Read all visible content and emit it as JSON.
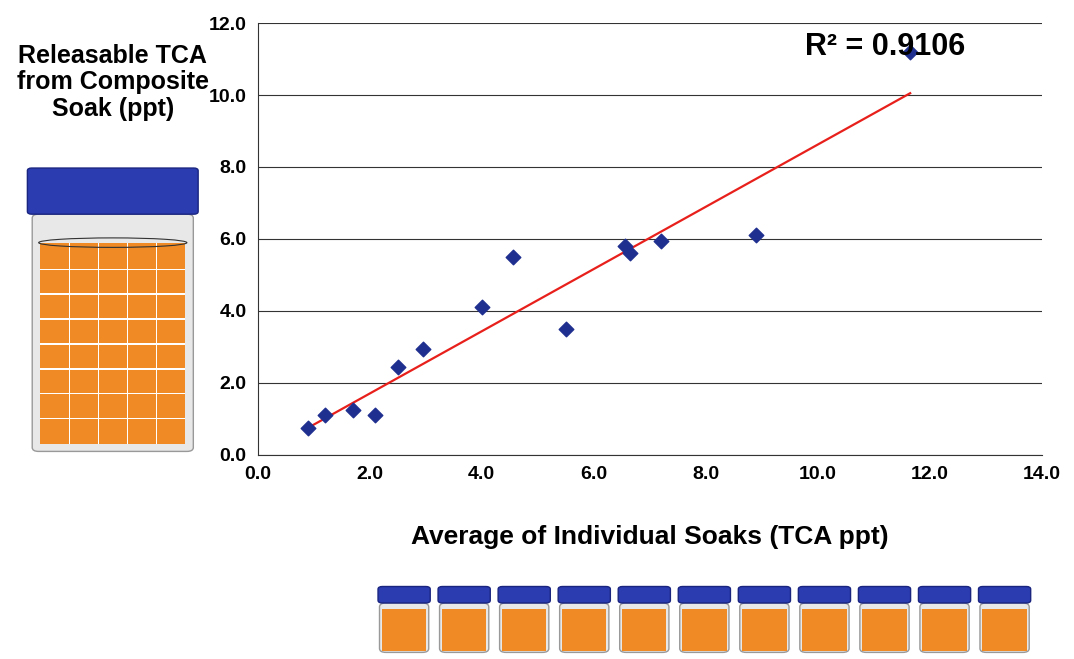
{
  "chart_data": {
    "type": "scatter",
    "y_label": "Releasable TCA\nfrom Composite\nSoak (ppt)",
    "x_label": "Average of Individual Soaks (TCA ppt)",
    "annotations": [
      "R² = 0.9106"
    ],
    "series": [
      {
        "type": "scatter",
        "color": "#1f2f8f",
        "marker": "diamond",
        "x": [
          0.9,
          1.2,
          1.7,
          2.1,
          2.5,
          2.95,
          4.0,
          4.55,
          5.5,
          6.55,
          6.65,
          7.2,
          8.9,
          11.65
        ],
        "values": [
          0.75,
          1.1,
          1.25,
          1.1,
          2.45,
          2.95,
          4.1,
          5.5,
          3.5,
          5.8,
          5.6,
          5.95,
          6.1,
          11.2
        ]
      },
      {
        "type": "line",
        "color": "#e8201c",
        "line_style": "solid",
        "x": [
          0.9,
          11.65
        ],
        "values": [
          0.75,
          10.05
        ]
      }
    ],
    "xlim": [
      0,
      14
    ],
    "xticks": [
      {
        "value": 0,
        "label": "0.0"
      },
      {
        "value": 2,
        "label": "2.0"
      },
      {
        "value": 4,
        "label": "4.0"
      },
      {
        "value": 6,
        "label": "6.0"
      },
      {
        "value": 8,
        "label": "8.0"
      },
      {
        "value": 10,
        "label": "10.0"
      },
      {
        "value": 12,
        "label": "12.0"
      },
      {
        "value": 14,
        "label": "14.0"
      }
    ],
    "ylim": [
      0,
      12
    ],
    "yticks": [
      {
        "value": 0,
        "label": "0.0"
      },
      {
        "value": 2,
        "label": "2.0"
      },
      {
        "value": 4,
        "label": "4.0"
      },
      {
        "value": 6,
        "label": "6.0"
      },
      {
        "value": 8,
        "label": "8.0"
      },
      {
        "value": 10,
        "label": "10.0"
      },
      {
        "value": 12,
        "label": "12.0"
      }
    ],
    "grid": "y"
  }
}
